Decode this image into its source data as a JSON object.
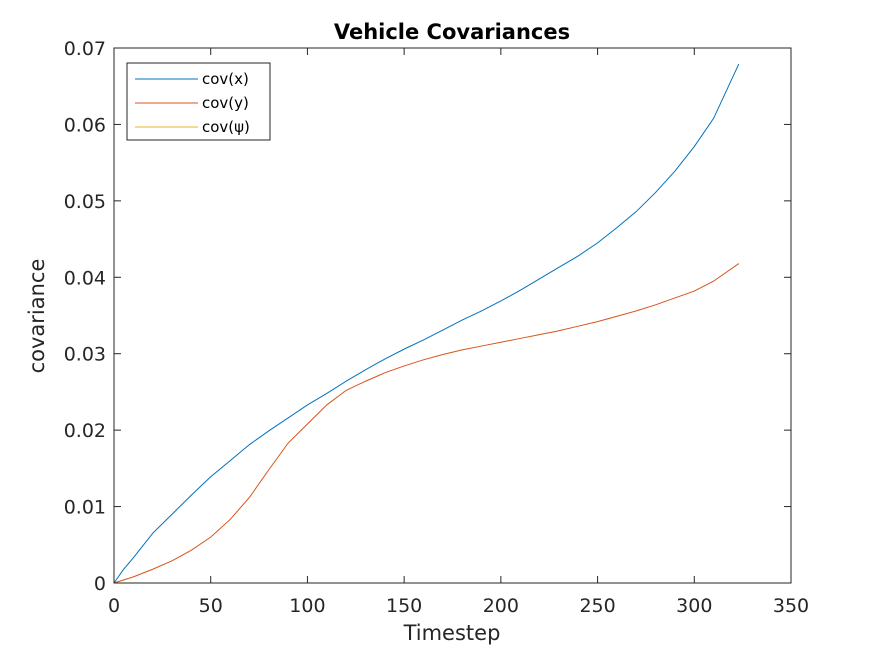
{
  "chart_data": {
    "type": "line",
    "title": "Vehicle Covariances",
    "xlabel": "Timestep",
    "ylabel": "covariance",
    "xlim": [
      0,
      350
    ],
    "ylim": [
      0,
      0.07
    ],
    "xticks": [
      0,
      50,
      100,
      150,
      200,
      250,
      300,
      350
    ],
    "xtick_labels": [
      "0",
      "50",
      "100",
      "150",
      "200",
      "250",
      "300",
      "350"
    ],
    "yticks": [
      0,
      0.01,
      0.02,
      0.03,
      0.04,
      0.05,
      0.06,
      0.07
    ],
    "ytick_labels": [
      "0",
      "0.01",
      "0.02",
      "0.03",
      "0.04",
      "0.05",
      "0.06",
      "0.07"
    ],
    "grid": false,
    "legend_position": "top-left",
    "series": [
      {
        "name": "cov(x)",
        "color": "#0072BD",
        "x": [
          0,
          5,
          10,
          20,
          30,
          40,
          50,
          60,
          70,
          80,
          90,
          100,
          110,
          120,
          130,
          140,
          150,
          160,
          170,
          180,
          190,
          200,
          210,
          220,
          230,
          240,
          250,
          260,
          270,
          280,
          290,
          300,
          310,
          323
        ],
        "y": [
          0,
          0.0018,
          0.0033,
          0.0065,
          0.009,
          0.0115,
          0.0139,
          0.016,
          0.0181,
          0.0199,
          0.0216,
          0.0233,
          0.0248,
          0.0264,
          0.0279,
          0.0293,
          0.0306,
          0.0318,
          0.0331,
          0.0344,
          0.0356,
          0.0369,
          0.0383,
          0.0398,
          0.0413,
          0.0428,
          0.0445,
          0.0465,
          0.0486,
          0.0511,
          0.0539,
          0.0571,
          0.0608,
          0.0679
        ]
      },
      {
        "name": "cov(y)",
        "color": "#D95319",
        "x": [
          0,
          10,
          20,
          30,
          40,
          50,
          60,
          70,
          80,
          90,
          100,
          110,
          120,
          130,
          140,
          150,
          160,
          170,
          180,
          190,
          200,
          210,
          220,
          230,
          240,
          250,
          260,
          270,
          280,
          290,
          300,
          310,
          323
        ],
        "y": [
          0,
          0.0008,
          0.0018,
          0.0029,
          0.0043,
          0.006,
          0.0083,
          0.0112,
          0.0148,
          0.0183,
          0.0208,
          0.0233,
          0.0252,
          0.0264,
          0.0275,
          0.0284,
          0.0292,
          0.0299,
          0.0305,
          0.031,
          0.0315,
          0.032,
          0.0325,
          0.033,
          0.0336,
          0.0342,
          0.0349,
          0.0356,
          0.0364,
          0.0373,
          0.0382,
          0.0395,
          0.0418
        ]
      },
      {
        "name": "cov(ψ)",
        "color": "#EDB120",
        "x": [
          0,
          50,
          100,
          150,
          200,
          250,
          300,
          323
        ],
        "y": [
          0,
          0,
          0,
          0,
          0,
          0,
          0,
          0
        ]
      }
    ]
  }
}
